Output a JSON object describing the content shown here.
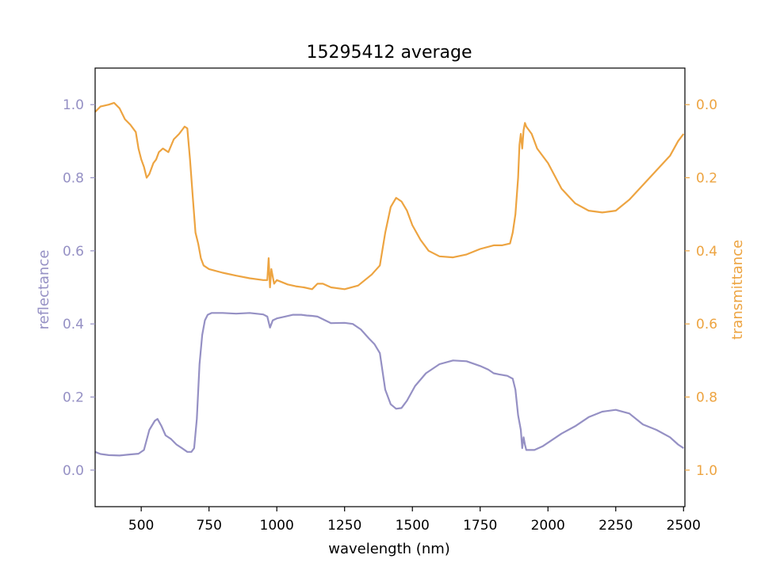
{
  "chart_data": {
    "type": "line",
    "title": "15295412 average",
    "xlabel": "wavelength (nm)",
    "ylabel_left": "reflectance",
    "ylabel_right": "transmittance",
    "xlim": [
      330,
      2505
    ],
    "ylim_left": [
      -0.1,
      1.1
    ],
    "ylim_right": [
      1.1,
      -0.1
    ],
    "right_axis_inverted": true,
    "grid": false,
    "x_ticks": [
      500,
      750,
      1000,
      1250,
      1500,
      1750,
      2000,
      2250,
      2500
    ],
    "x_tick_labels": [
      "500",
      "750",
      "1000",
      "1250",
      "1500",
      "1750",
      "2000",
      "2250",
      "2500"
    ],
    "y_left_ticks": [
      0.0,
      0.2,
      0.4,
      0.6,
      0.8,
      1.0
    ],
    "y_left_tick_labels": [
      "0.0",
      "0.2",
      "0.4",
      "0.6",
      "0.8",
      "1.0"
    ],
    "y_right_ticks": [
      0.0,
      0.2,
      0.4,
      0.6,
      0.8,
      1.0
    ],
    "y_right_tick_labels": [
      "0.0",
      "0.2",
      "0.4",
      "0.6",
      "0.8",
      "1.0"
    ],
    "colors": {
      "reflectance": "#9590c4",
      "transmittance": "#eda441"
    },
    "series": [
      {
        "axis": "left",
        "x": [
          330,
          350,
          380,
          420,
          460,
          490,
          510,
          530,
          550,
          560,
          575,
          590,
          610,
          630,
          650,
          670,
          685,
          695,
          705,
          715,
          725,
          735,
          745,
          760,
          800,
          850,
          900,
          950,
          965,
          975,
          985,
          1000,
          1030,
          1060,
          1090,
          1110,
          1130,
          1150,
          1200,
          1250,
          1280,
          1310,
          1340,
          1360,
          1380,
          1400,
          1420,
          1440,
          1460,
          1480,
          1510,
          1550,
          1600,
          1650,
          1700,
          1750,
          1780,
          1800,
          1820,
          1850,
          1870,
          1880,
          1890,
          1900,
          1905,
          1910,
          1915,
          1920,
          1950,
          1980,
          2000,
          2050,
          2100,
          2150,
          2200,
          2250,
          2300,
          2350,
          2400,
          2450,
          2480,
          2500
        ],
        "y": [
          0.05,
          0.044,
          0.041,
          0.04,
          0.043,
          0.045,
          0.055,
          0.11,
          0.135,
          0.14,
          0.12,
          0.095,
          0.085,
          0.07,
          0.06,
          0.05,
          0.05,
          0.06,
          0.14,
          0.29,
          0.37,
          0.41,
          0.425,
          0.43,
          0.43,
          0.428,
          0.43,
          0.426,
          0.42,
          0.39,
          0.41,
          0.415,
          0.42,
          0.425,
          0.425,
          0.423,
          0.422,
          0.42,
          0.402,
          0.403,
          0.4,
          0.385,
          0.36,
          0.345,
          0.32,
          0.22,
          0.18,
          0.168,
          0.17,
          0.19,
          0.23,
          0.265,
          0.29,
          0.3,
          0.298,
          0.285,
          0.275,
          0.265,
          0.262,
          0.258,
          0.25,
          0.22,
          0.15,
          0.11,
          0.06,
          0.09,
          0.07,
          0.055,
          0.055,
          0.065,
          0.075,
          0.1,
          0.12,
          0.145,
          0.16,
          0.165,
          0.155,
          0.125,
          0.11,
          0.09,
          0.07,
          0.06
        ]
      },
      {
        "axis": "right",
        "x": [
          330,
          350,
          380,
          400,
          420,
          440,
          460,
          480,
          490,
          500,
          510,
          520,
          530,
          545,
          555,
          565,
          580,
          600,
          620,
          640,
          650,
          660,
          670,
          680,
          690,
          700,
          710,
          720,
          730,
          750,
          800,
          850,
          900,
          950,
          965,
          970,
          975,
          980,
          990,
          1000,
          1040,
          1070,
          1100,
          1130,
          1150,
          1170,
          1200,
          1250,
          1300,
          1350,
          1380,
          1400,
          1420,
          1440,
          1460,
          1480,
          1500,
          1530,
          1560,
          1600,
          1650,
          1700,
          1750,
          1800,
          1830,
          1860,
          1870,
          1880,
          1890,
          1895,
          1900,
          1905,
          1910,
          1915,
          1920,
          1940,
          1960,
          2000,
          2050,
          2100,
          2150,
          2200,
          2250,
          2300,
          2350,
          2400,
          2450,
          2480,
          2500
        ],
        "y": [
          0.02,
          0.005,
          0.0,
          -0.005,
          0.01,
          0.04,
          0.055,
          0.075,
          0.12,
          0.15,
          0.17,
          0.2,
          0.19,
          0.16,
          0.15,
          0.13,
          0.12,
          0.13,
          0.095,
          0.08,
          0.07,
          0.06,
          0.065,
          0.15,
          0.25,
          0.35,
          0.38,
          0.42,
          0.44,
          0.45,
          0.46,
          0.468,
          0.475,
          0.48,
          0.48,
          0.42,
          0.5,
          0.45,
          0.49,
          0.48,
          0.492,
          0.497,
          0.5,
          0.505,
          0.49,
          0.49,
          0.5,
          0.505,
          0.495,
          0.465,
          0.44,
          0.35,
          0.28,
          0.255,
          0.265,
          0.29,
          0.33,
          0.37,
          0.4,
          0.415,
          0.418,
          0.41,
          0.395,
          0.385,
          0.385,
          0.38,
          0.35,
          0.3,
          0.2,
          0.11,
          0.08,
          0.12,
          0.07,
          0.05,
          0.06,
          0.08,
          0.12,
          0.16,
          0.23,
          0.27,
          0.29,
          0.295,
          0.29,
          0.26,
          0.22,
          0.18,
          0.14,
          0.1,
          0.08
        ]
      }
    ]
  }
}
